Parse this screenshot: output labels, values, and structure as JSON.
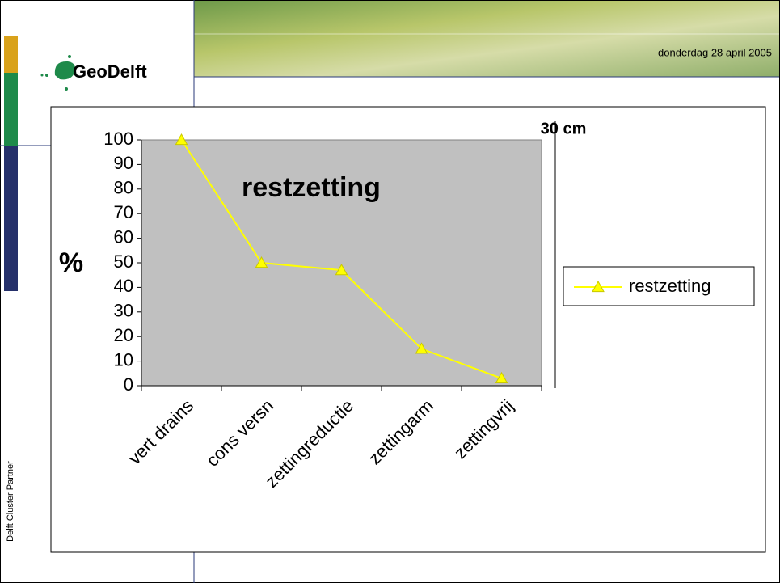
{
  "header": {
    "date": "donderdag 28 april 2005",
    "logo": "GeoDelft",
    "sidebar": "Delft Cluster Partner"
  },
  "chart_data": {
    "type": "line",
    "annotations": [
      "restzetting",
      "%",
      "30 cm"
    ],
    "categories": [
      "vert drains",
      "cons versn",
      "zettingreductie",
      "zettingarm",
      "zettingvrij"
    ],
    "series": [
      {
        "name": "restzetting",
        "color": "#ffff00",
        "values": [
          100,
          50,
          47,
          15,
          3
        ]
      }
    ],
    "ylim": [
      0,
      100
    ],
    "yticks": [
      0,
      10,
      20,
      30,
      40,
      50,
      60,
      70,
      80,
      90,
      100
    ],
    "legend": "right"
  }
}
